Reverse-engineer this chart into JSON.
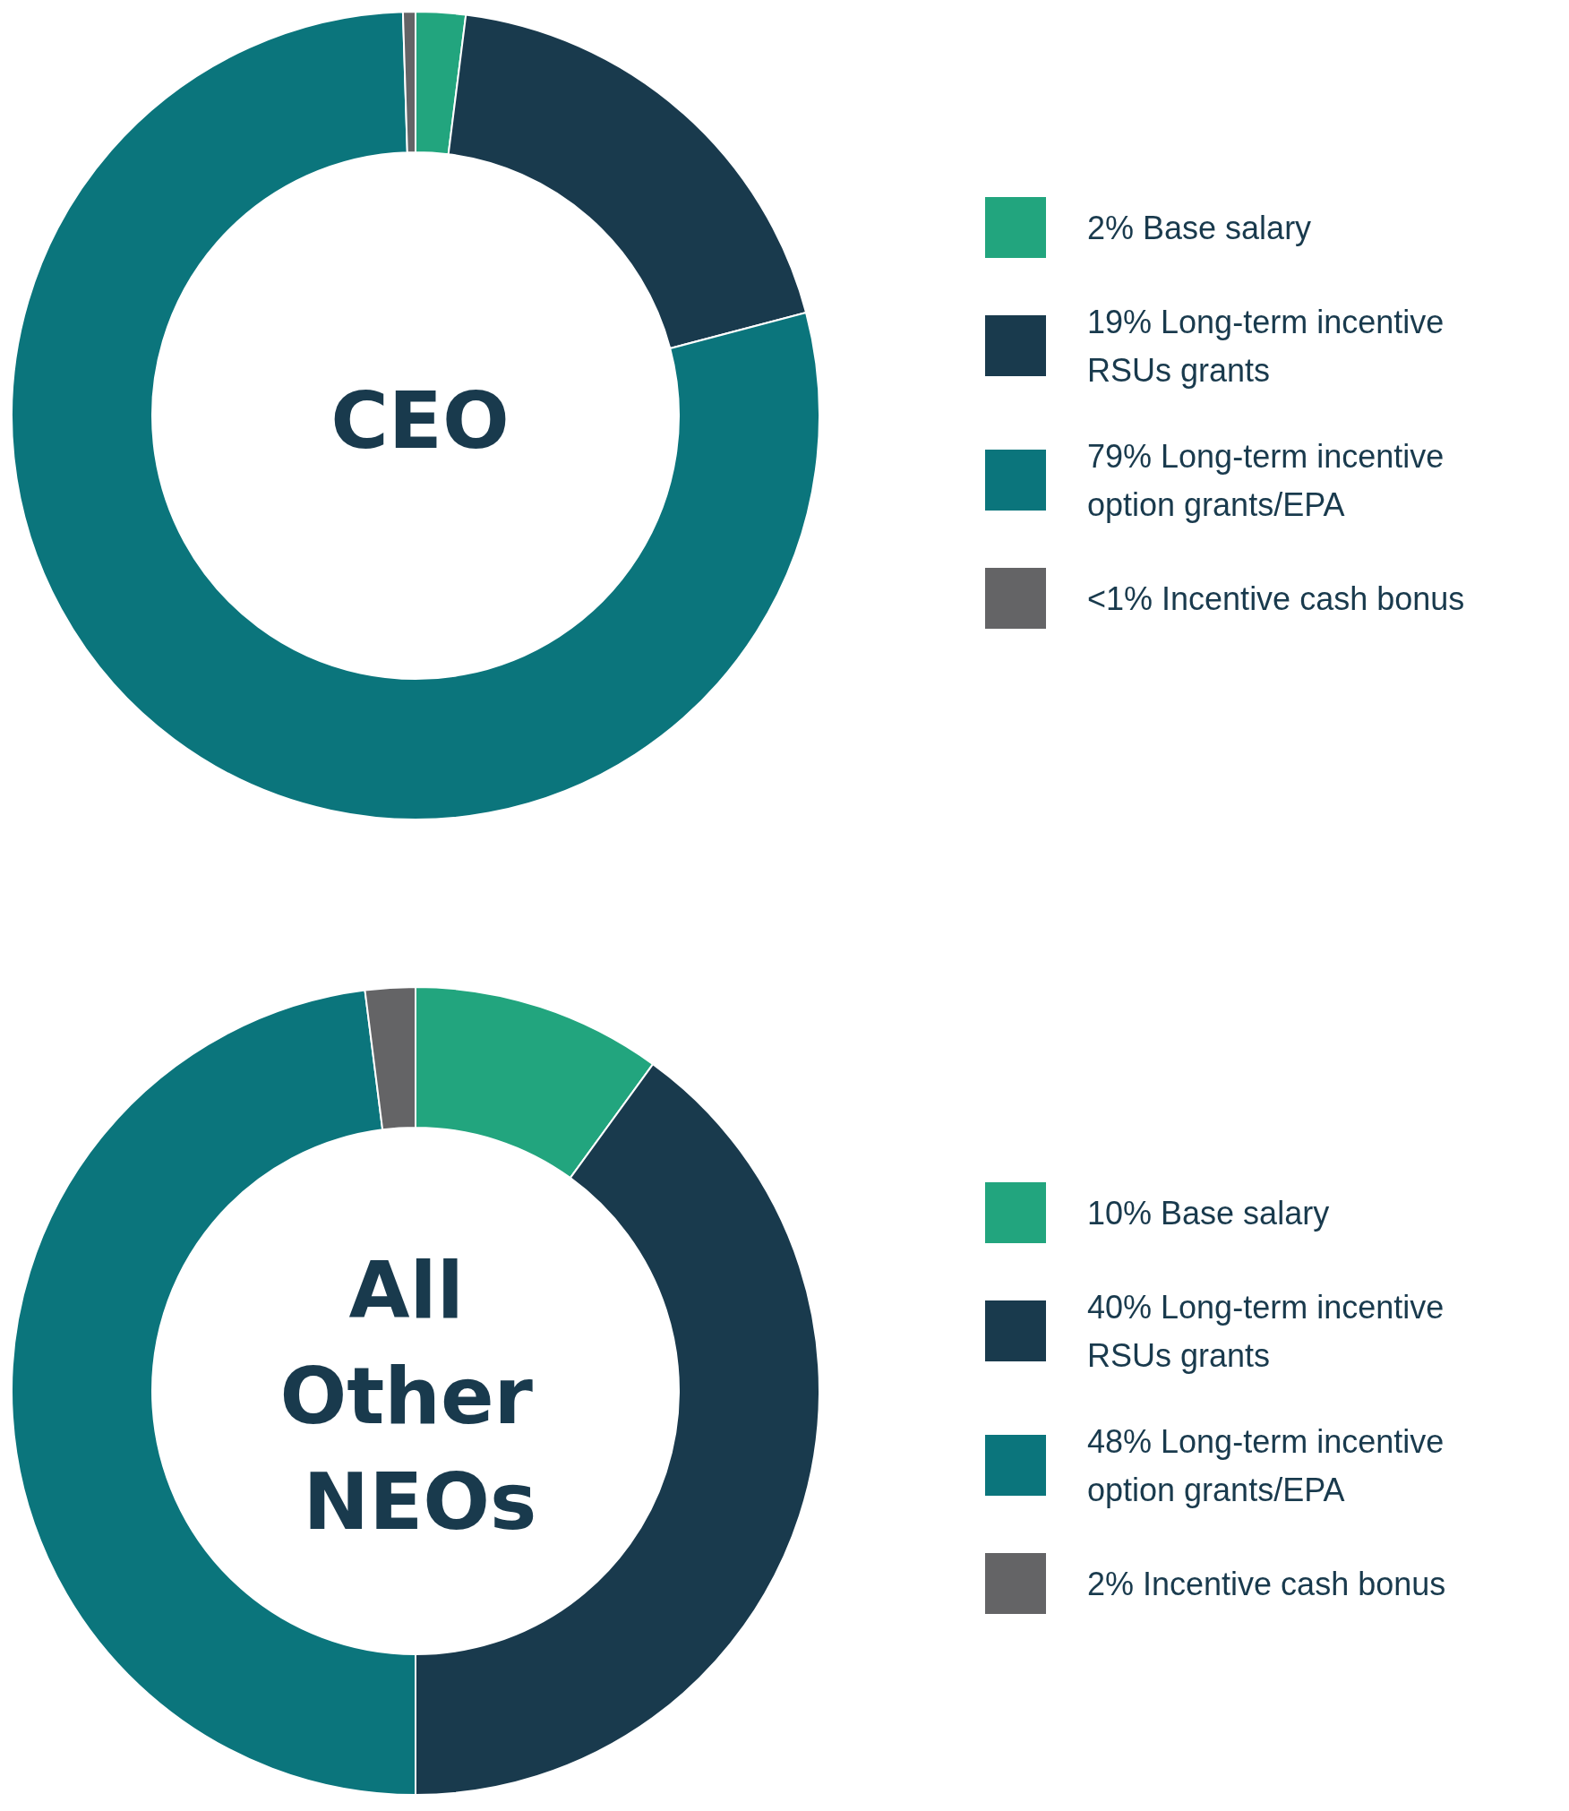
{
  "chart_data": [
    {
      "type": "donut",
      "title": "CEO",
      "categories": [
        "2% Base salary",
        "19% Long-term incentive RSUs grants",
        "79% Long-term incentive option grants/EPA",
        "<1% Incentive cash bonus"
      ],
      "values": [
        2,
        19,
        79,
        0.5
      ],
      "colors": [
        "#22a57e",
        "#193a4d",
        "#0b757c",
        "#646466"
      ],
      "legend": "right"
    },
    {
      "type": "donut",
      "title": "All Other NEOs",
      "categories": [
        "10% Base salary",
        "40% Long-term incentive RSUs grants",
        "48% Long-term incentive option grants/EPA",
        "2% Incentive cash bonus"
      ],
      "values": [
        10,
        40,
        48,
        2
      ],
      "colors": [
        "#22a57e",
        "#193a4d",
        "#0b757c",
        "#646466"
      ],
      "legend": "right"
    }
  ]
}
